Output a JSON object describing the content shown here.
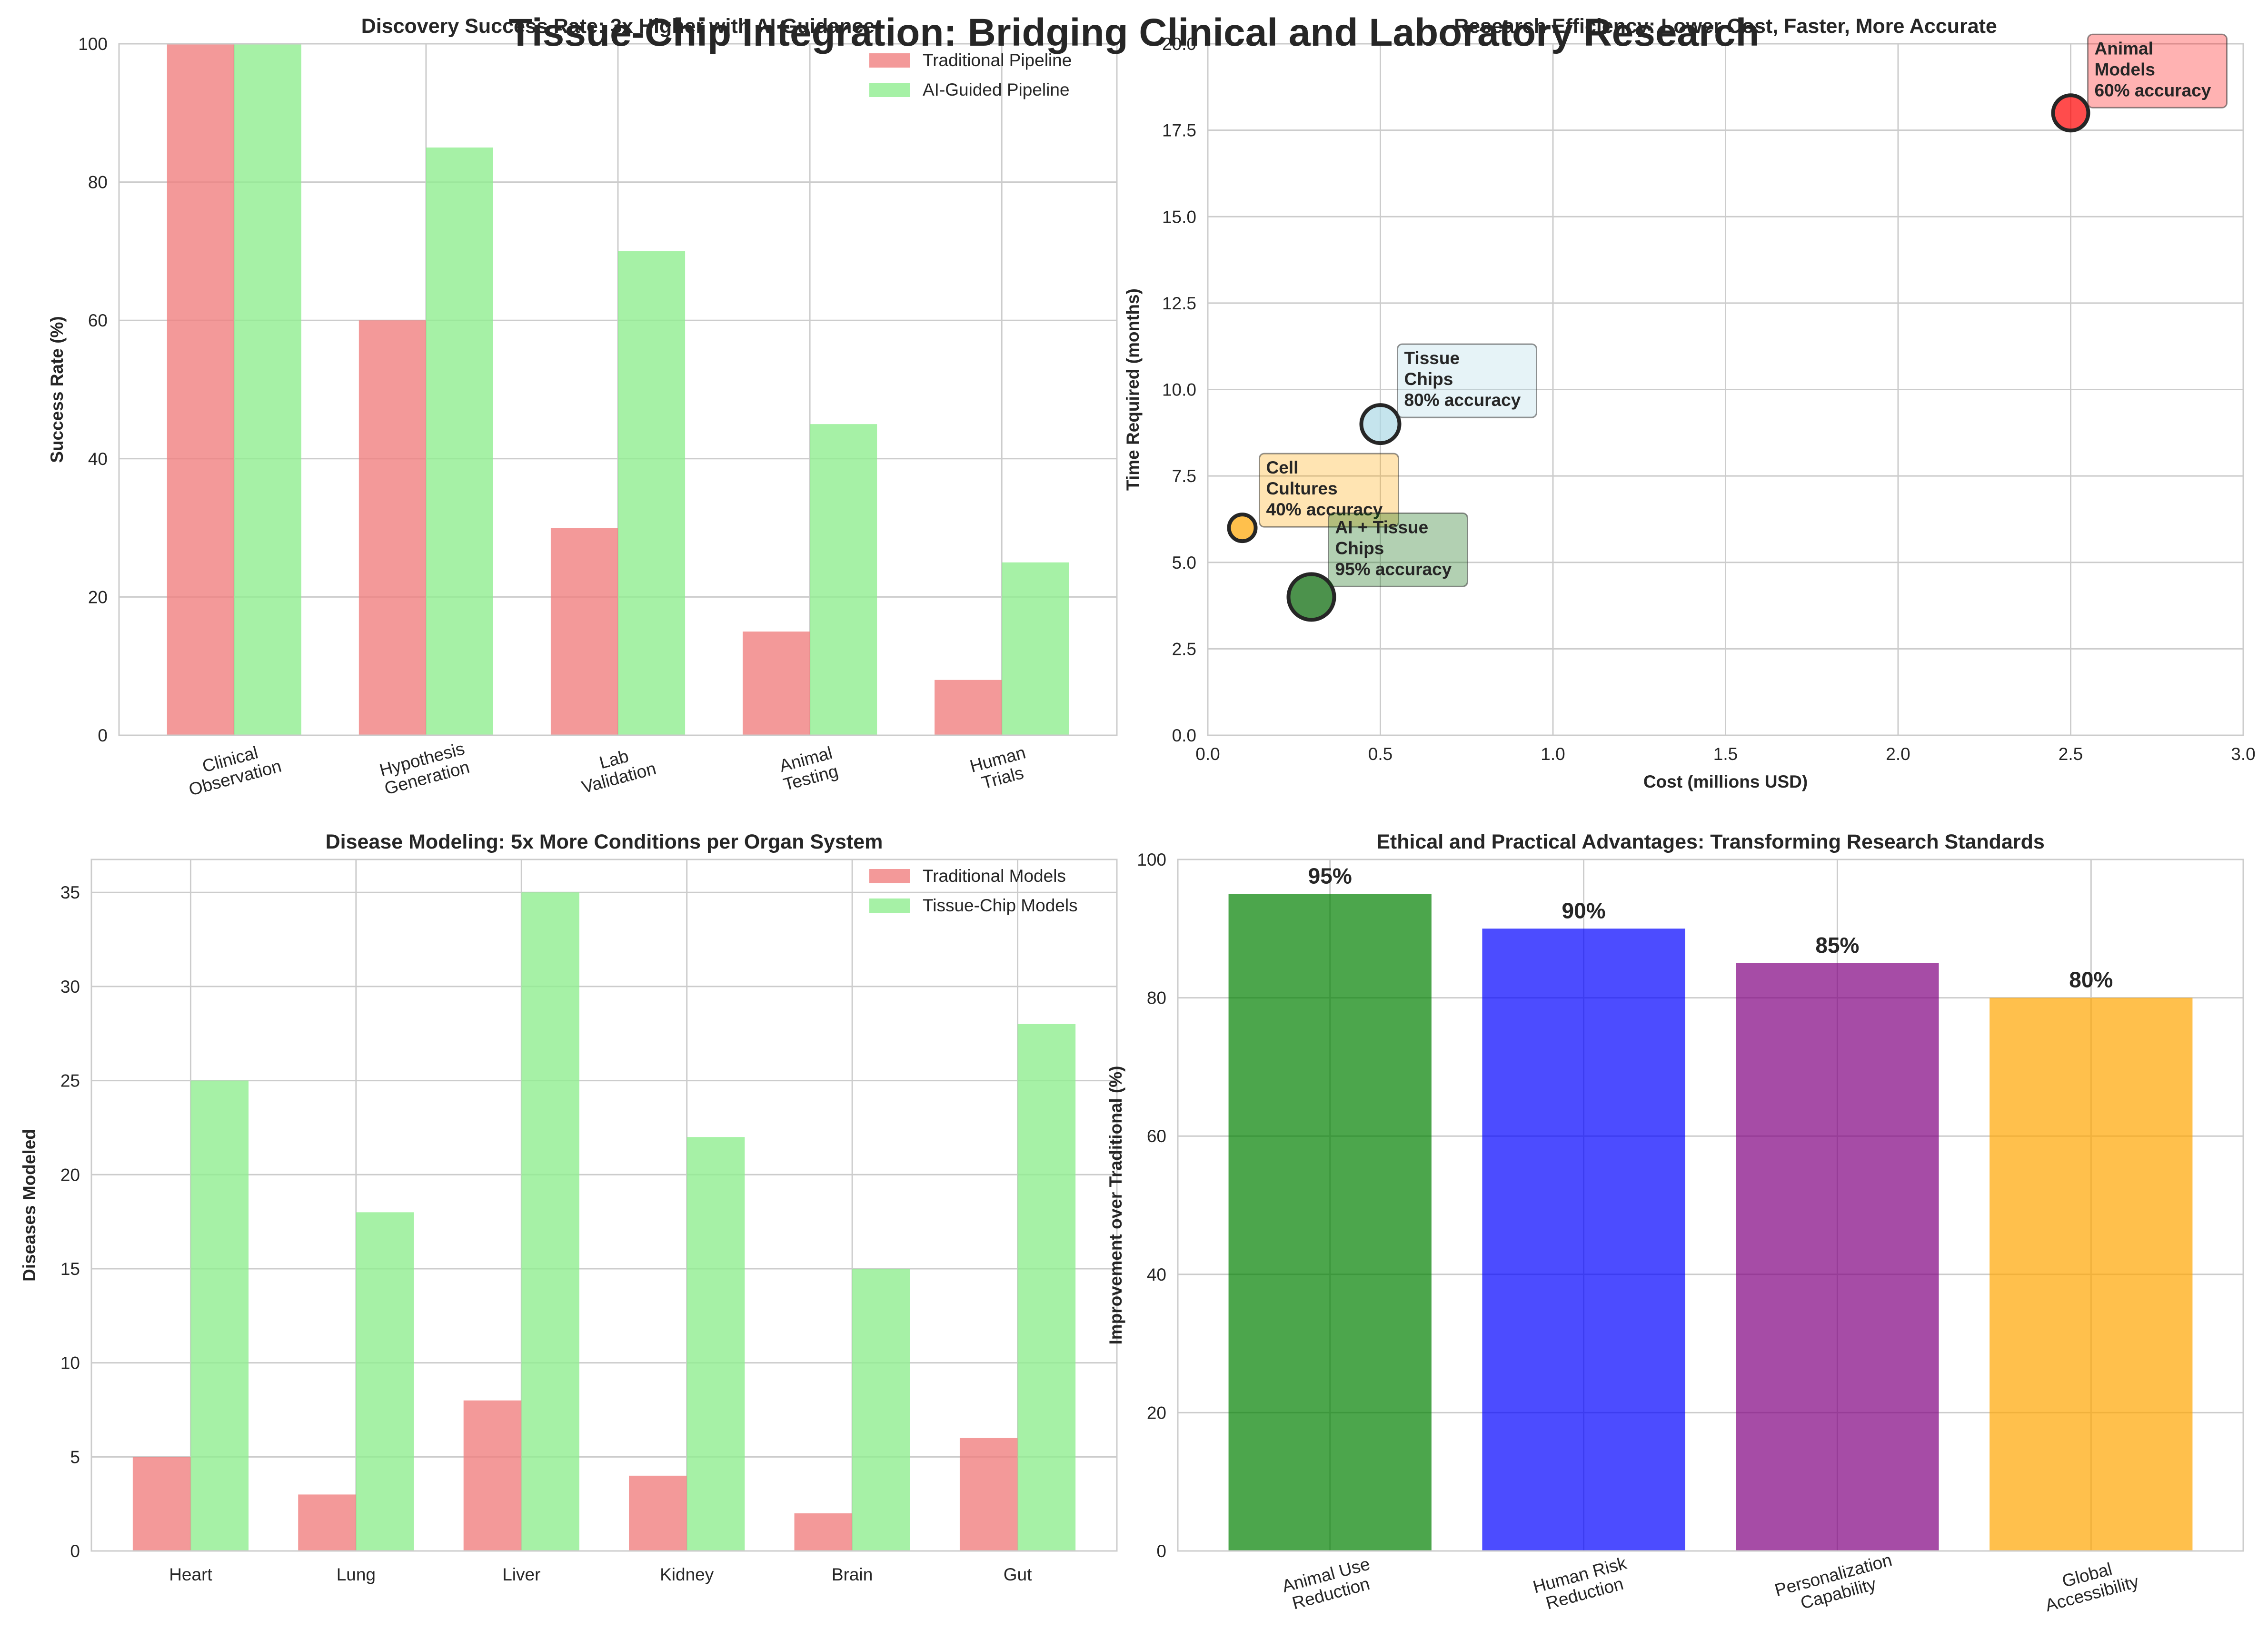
{
  "figure": {
    "title": "Tissue-Chip Integration: Bridging Clinical and Laboratory Research"
  },
  "chart_data": [
    {
      "type": "bar",
      "title": "Discovery Success Rate: 3x Higher with AI Guidance",
      "xlabel": "",
      "ylabel": "Success Rate (%)",
      "categories": [
        "Clinical\nObservation",
        "Hypothesis\nGeneration",
        "Lab\nValidation",
        "Animal\nTesting",
        "Human\nTrials"
      ],
      "series": [
        {
          "name": "Traditional Pipeline",
          "values": [
            100,
            60,
            30,
            15,
            8
          ],
          "color": "#f08080"
        },
        {
          "name": "AI-Guided Pipeline",
          "values": [
            100,
            85,
            70,
            45,
            25
          ],
          "color": "#90ee90"
        }
      ],
      "ylim": [
        0,
        100
      ],
      "yticks": [
        0,
        20,
        40,
        60,
        80,
        100
      ],
      "tick_rotation": 15,
      "grid": true,
      "legend": "top-right"
    },
    {
      "type": "scatter",
      "title": "Research Efficiency: Lower Cost, Faster, More Accurate",
      "xlabel": "Cost (millions USD)",
      "ylabel": "Time Required (months)",
      "points": [
        {
          "x": 2.5,
          "y": 18,
          "color": "#ff0000",
          "size_rank": 3,
          "label": [
            "Animal",
            "Models",
            "60% accuracy"
          ]
        },
        {
          "x": 0.1,
          "y": 6,
          "color": "#ffa500",
          "size_rank": 1,
          "label": [
            "Cell",
            "Cultures",
            "40% accuracy"
          ]
        },
        {
          "x": 0.5,
          "y": 9,
          "color": "#add8e6",
          "size_rank": 4,
          "label": [
            "Tissue",
            "Chips",
            "80% accuracy"
          ]
        },
        {
          "x": 0.3,
          "y": 4,
          "color": "#006400",
          "size_rank": 5,
          "label": [
            "AI + Tissue",
            "Chips",
            "95% accuracy"
          ]
        }
      ],
      "xlim": [
        0,
        3
      ],
      "ylim": [
        0,
        20
      ],
      "xticks": [
        "0.0",
        "0.5",
        "1.0",
        "1.5",
        "2.0",
        "2.5",
        "3.0"
      ],
      "yticks": [
        "0.0",
        "2.5",
        "5.0",
        "7.5",
        "10.0",
        "12.5",
        "15.0",
        "17.5",
        "20.0"
      ],
      "grid": true
    },
    {
      "type": "bar",
      "title": "Disease Modeling: 5x More Conditions per Organ System",
      "xlabel": "",
      "ylabel": "Diseases Modeled",
      "categories": [
        "Heart",
        "Lung",
        "Liver",
        "Kidney",
        "Brain",
        "Gut"
      ],
      "series": [
        {
          "name": "Traditional Models",
          "values": [
            5,
            3,
            8,
            4,
            2,
            6
          ],
          "color": "#f08080"
        },
        {
          "name": "Tissue-Chip Models",
          "values": [
            25,
            18,
            35,
            22,
            15,
            28
          ],
          "color": "#90ee90"
        }
      ],
      "ylim": [
        0,
        36.75
      ],
      "yticks": [
        0,
        5,
        10,
        15,
        20,
        25,
        30,
        35
      ],
      "tick_rotation": 0,
      "grid": true,
      "legend": "top-right"
    },
    {
      "type": "bar",
      "title": "Ethical and Practical Advantages: Transforming Research Standards",
      "xlabel": "",
      "ylabel": "Improvement over Traditional (%)",
      "categories": [
        "Animal Use\nReduction",
        "Human Risk\nReduction",
        "Personalization\nCapability",
        "Global\nAccessibility"
      ],
      "series": [
        {
          "name": "",
          "values": [
            95,
            90,
            85,
            80
          ],
          "colors": [
            "#008000",
            "#0000ff",
            "#800080",
            "#ffa500"
          ]
        }
      ],
      "data_labels": [
        "95%",
        "90%",
        "85%",
        "80%"
      ],
      "ylim": [
        0,
        100
      ],
      "yticks": [
        0,
        20,
        40,
        60,
        80,
        100
      ],
      "tick_rotation": 15,
      "grid": true
    }
  ]
}
